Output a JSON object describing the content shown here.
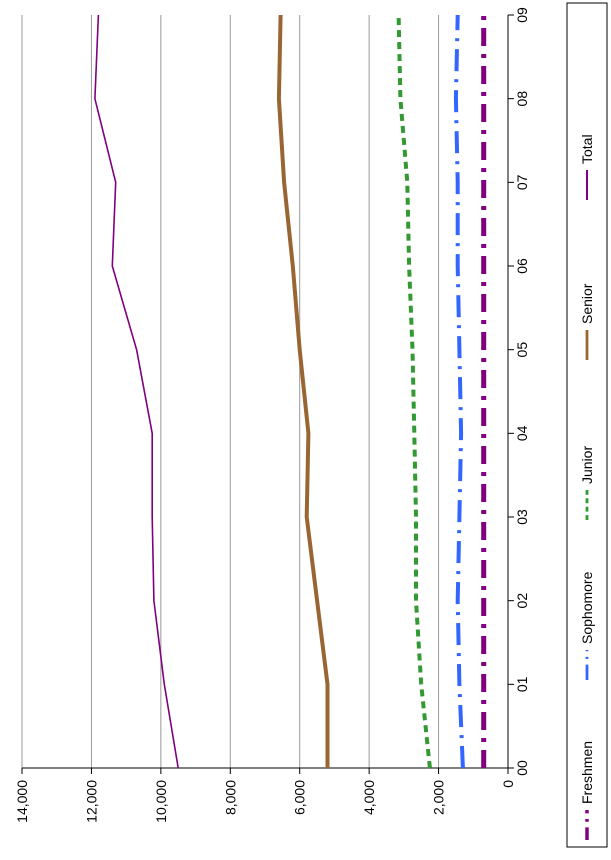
{
  "chart_data": {
    "type": "line",
    "orientation": "rotated 90° clockwise (categories run top-to-bottom along the right axis, values increase leftward)",
    "categories": [
      "00",
      "01",
      "02",
      "03",
      "04",
      "05",
      "06",
      "07",
      "08",
      "09"
    ],
    "ylim": [
      0,
      14000
    ],
    "y_ticks": [
      "0",
      "2,000",
      "4,000",
      "6,000",
      "8,000",
      "10,000",
      "12,000",
      "14,000"
    ],
    "grid": true,
    "legend_position": "bottom",
    "series": [
      {
        "name": "Freshmen",
        "color": "#800080",
        "style": "dash-dot thick",
        "values": [
          700,
          700,
          700,
          700,
          700,
          700,
          700,
          700,
          700,
          700
        ]
      },
      {
        "name": "Sophomore",
        "color": "#3366ff",
        "style": "long dash-dot",
        "values": [
          1300,
          1400,
          1450,
          1400,
          1350,
          1400,
          1450,
          1450,
          1500,
          1450
        ]
      },
      {
        "name": "Junior",
        "color": "#339933",
        "style": "short dash",
        "values": [
          2250,
          2500,
          2650,
          2650,
          2700,
          2750,
          2850,
          2900,
          3100,
          3150
        ]
      },
      {
        "name": "Senior",
        "color": "#996633",
        "style": "solid thick",
        "values": [
          5200,
          5200,
          5500,
          5800,
          5750,
          6000,
          6200,
          6450,
          6600,
          6550
        ]
      },
      {
        "name": "Total",
        "color": "#800080",
        "style": "solid thin",
        "values": [
          9500,
          9900,
          10200,
          10250,
          10250,
          10700,
          11400,
          11300,
          11900,
          11800
        ]
      }
    ]
  }
}
